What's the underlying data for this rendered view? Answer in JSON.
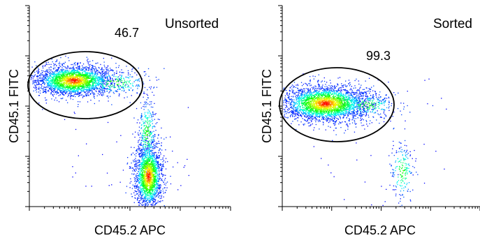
{
  "chart_data": [
    {
      "type": "scatter",
      "panel_label": "Unsorted",
      "xlabel": "CD45.2 APC",
      "ylabel": "CD45.1 FITC",
      "x_scale": "log",
      "y_scale": "log",
      "gate": {
        "shape": "ellipse",
        "population": "CD45.1+",
        "percent_label": "46.7"
      },
      "populations": [
        {
          "name": "CD45.1+ CD45.2-",
          "density": "high",
          "x_location": "low",
          "y_location": "high"
        },
        {
          "name": "CD45.2+ CD45.1-",
          "density": "high",
          "x_location": "high",
          "y_location": "low"
        }
      ],
      "color_scale": [
        "#0000ff",
        "#00ffff",
        "#00ff00",
        "#ffff00",
        "#ff0000"
      ]
    },
    {
      "type": "scatter",
      "panel_label": "Sorted",
      "xlabel": "CD45.2 APC",
      "ylabel": "CD45.1 FITC",
      "x_scale": "log",
      "y_scale": "log",
      "gate": {
        "shape": "ellipse",
        "population": "CD45.1+",
        "percent_label": "99.3"
      },
      "populations": [
        {
          "name": "CD45.1+ CD45.2-",
          "density": "high",
          "x_location": "low",
          "y_location": "high"
        },
        {
          "name": "CD45.2+ CD45.1- (residual)",
          "density": "low",
          "x_location": "high",
          "y_location": "low"
        }
      ],
      "color_scale": [
        "#0000ff",
        "#00ffff",
        "#00ff00",
        "#ffff00",
        "#ff0000"
      ]
    }
  ]
}
